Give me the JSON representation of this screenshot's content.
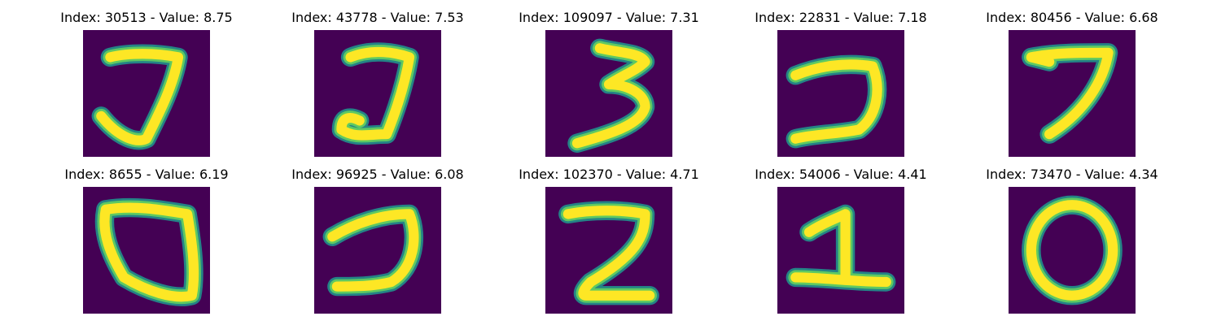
{
  "colors": {
    "background": "#440154",
    "edge": "#21918c",
    "mid": "#5ec962",
    "stroke": "#fde725"
  },
  "panels": [
    {
      "title": "Index: 30513 - Value: 8.75",
      "digit_shape": "seven"
    },
    {
      "title": "Index: 43778 - Value: 7.53",
      "digit_shape": "seven"
    },
    {
      "title": "Index: 109097 - Value: 7.31",
      "digit_shape": "three"
    },
    {
      "title": "Index: 22831 - Value: 7.18",
      "digit_shape": "seven"
    },
    {
      "title": "Index: 80456 - Value: 6.68",
      "digit_shape": "seven"
    },
    {
      "title": "Index: 8655 - Value: 6.19",
      "digit_shape": "zero"
    },
    {
      "title": "Index: 96925 - Value: 6.08",
      "digit_shape": "seven"
    },
    {
      "title": "Index: 102370 - Value: 4.71",
      "digit_shape": "two"
    },
    {
      "title": "Index: 54006 - Value: 4.41",
      "digit_shape": "one"
    },
    {
      "title": "Index: 73470 - Value: 4.34",
      "digit_shape": "zero"
    }
  ]
}
